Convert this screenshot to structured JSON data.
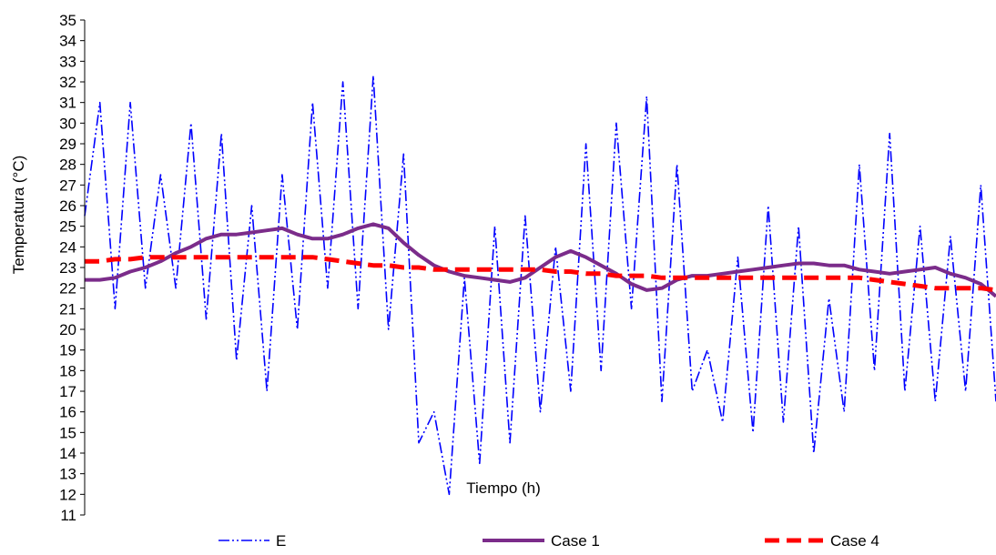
{
  "chart_data": {
    "type": "line",
    "xlabel": "Tiempo (h)",
    "ylabel": "Temperatura (°C)",
    "ylim": [
      11,
      35
    ],
    "yticks": [
      11,
      12,
      13,
      14,
      15,
      16,
      17,
      18,
      19,
      20,
      21,
      22,
      23,
      24,
      25,
      26,
      27,
      28,
      29,
      30,
      31,
      32,
      33,
      34,
      35
    ],
    "grid": false,
    "legend_position": "bottom",
    "x": [
      0,
      1,
      2,
      3,
      4,
      5,
      6,
      7,
      8,
      9,
      10,
      11,
      12,
      13,
      14,
      15,
      16,
      17,
      18,
      19,
      20,
      21,
      22,
      23,
      24,
      25,
      26,
      27,
      28,
      29,
      30,
      31,
      32,
      33,
      34,
      35,
      36,
      37,
      38,
      39,
      40,
      41,
      42,
      43,
      44,
      45,
      46,
      47,
      48,
      49,
      50,
      51,
      52,
      53,
      54,
      55,
      56,
      57,
      58,
      59,
      60
    ],
    "series": [
      {
        "name": "E",
        "color": "#0000FF",
        "style": "dash-dot-dot",
        "values": [
          25.5,
          31.0,
          21.0,
          31.0,
          22.0,
          27.5,
          22.0,
          30.0,
          20.5,
          29.5,
          18.5,
          26.0,
          17.0,
          27.5,
          20.0,
          31.0,
          22.0,
          32.0,
          21.0,
          32.3,
          20.0,
          28.5,
          14.5,
          16.0,
          12.0,
          22.5,
          13.5,
          25.0,
          14.5,
          25.5,
          16.0,
          24.0,
          17.0,
          29.0,
          18.0,
          30.0,
          21.0,
          31.3,
          16.5,
          28.0,
          17.0,
          19.0,
          15.5,
          23.5,
          15.0,
          26.0,
          15.5,
          25.0,
          14.0,
          21.5,
          16.0,
          28.0,
          18.0,
          29.5,
          17.0,
          25.0,
          16.5,
          24.5,
          17.0,
          27.0,
          16.5
        ]
      },
      {
        "name": "Case 1",
        "color": "#7B2C8A",
        "style": "solid",
        "values": [
          22.4,
          22.4,
          22.5,
          22.8,
          23.0,
          23.3,
          23.7,
          24.0,
          24.4,
          24.6,
          24.6,
          24.7,
          24.8,
          24.9,
          24.6,
          24.4,
          24.4,
          24.6,
          24.9,
          25.1,
          24.9,
          24.2,
          23.6,
          23.1,
          22.8,
          22.6,
          22.5,
          22.4,
          22.3,
          22.5,
          23.0,
          23.5,
          23.8,
          23.5,
          23.1,
          22.7,
          22.2,
          21.9,
          22.0,
          22.4,
          22.6,
          22.6,
          22.7,
          22.8,
          22.9,
          23.0,
          23.1,
          23.2,
          23.2,
          23.1,
          23.1,
          22.9,
          22.8,
          22.7,
          22.8,
          22.9,
          23.0,
          22.7,
          22.5,
          22.2,
          21.6
        ]
      },
      {
        "name": "Case 4",
        "color": "#FF0000",
        "style": "dashed",
        "values": [
          23.3,
          23.3,
          23.4,
          23.4,
          23.5,
          23.5,
          23.5,
          23.5,
          23.5,
          23.5,
          23.5,
          23.5,
          23.5,
          23.5,
          23.5,
          23.5,
          23.4,
          23.3,
          23.2,
          23.1,
          23.1,
          23.0,
          23.0,
          22.9,
          22.9,
          22.9,
          22.9,
          22.9,
          22.9,
          22.9,
          22.9,
          22.8,
          22.8,
          22.7,
          22.7,
          22.6,
          22.6,
          22.6,
          22.5,
          22.5,
          22.5,
          22.5,
          22.5,
          22.5,
          22.5,
          22.5,
          22.5,
          22.5,
          22.5,
          22.5,
          22.5,
          22.5,
          22.4,
          22.3,
          22.2,
          22.1,
          22.0,
          22.0,
          22.0,
          22.0,
          21.9
        ]
      }
    ]
  }
}
